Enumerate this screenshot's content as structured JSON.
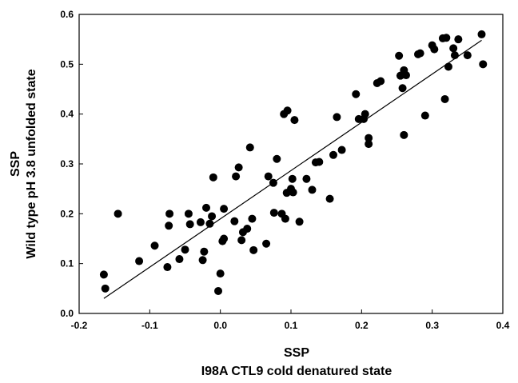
{
  "chart_data": {
    "type": "scatter",
    "xlabel": [
      "SSP",
      "I98A CTL9 cold denatured state"
    ],
    "ylabel": [
      "SSP",
      "Wild type pH 3.8 unfolded state"
    ],
    "xlim": [
      -0.2,
      0.4
    ],
    "ylim": [
      0.0,
      0.6
    ],
    "xticks": [
      "-0.2",
      "-0.1",
      "0.0",
      "0.1",
      "0.2",
      "0.3",
      "0.4"
    ],
    "yticks": [
      "0.0",
      "0.1",
      "0.2",
      "0.3",
      "0.4",
      "0.5",
      "0.6"
    ],
    "grid": false,
    "legend": "none",
    "colors": {
      "points": "#000000",
      "line": "#000000",
      "axes": "#000000"
    },
    "trendline": {
      "x": [
        -0.165,
        0.37
      ],
      "y": [
        0.03,
        0.548
      ]
    },
    "points": [
      {
        "x": -0.165,
        "y": 0.078
      },
      {
        "x": -0.163,
        "y": 0.05
      },
      {
        "x": -0.145,
        "y": 0.2
      },
      {
        "x": -0.115,
        "y": 0.105
      },
      {
        "x": -0.093,
        "y": 0.136
      },
      {
        "x": -0.075,
        "y": 0.093
      },
      {
        "x": -0.073,
        "y": 0.176
      },
      {
        "x": -0.072,
        "y": 0.2
      },
      {
        "x": -0.058,
        "y": 0.109
      },
      {
        "x": -0.05,
        "y": 0.128
      },
      {
        "x": -0.045,
        "y": 0.2
      },
      {
        "x": -0.043,
        "y": 0.179
      },
      {
        "x": -0.028,
        "y": 0.183
      },
      {
        "x": -0.025,
        "y": 0.107
      },
      {
        "x": -0.023,
        "y": 0.124
      },
      {
        "x": -0.02,
        "y": 0.212
      },
      {
        "x": -0.015,
        "y": 0.18
      },
      {
        "x": -0.012,
        "y": 0.195
      },
      {
        "x": -0.01,
        "y": 0.273
      },
      {
        "x": -0.003,
        "y": 0.045
      },
      {
        "x": 0.0,
        "y": 0.08
      },
      {
        "x": 0.003,
        "y": 0.145
      },
      {
        "x": 0.005,
        "y": 0.15
      },
      {
        "x": 0.005,
        "y": 0.21
      },
      {
        "x": 0.02,
        "y": 0.185
      },
      {
        "x": 0.022,
        "y": 0.275
      },
      {
        "x": 0.026,
        "y": 0.293
      },
      {
        "x": 0.03,
        "y": 0.147
      },
      {
        "x": 0.032,
        "y": 0.163
      },
      {
        "x": 0.038,
        "y": 0.17
      },
      {
        "x": 0.042,
        "y": 0.333
      },
      {
        "x": 0.045,
        "y": 0.19
      },
      {
        "x": 0.047,
        "y": 0.127
      },
      {
        "x": 0.065,
        "y": 0.14
      },
      {
        "x": 0.068,
        "y": 0.275
      },
      {
        "x": 0.075,
        "y": 0.262
      },
      {
        "x": 0.076,
        "y": 0.202
      },
      {
        "x": 0.08,
        "y": 0.31
      },
      {
        "x": 0.087,
        "y": 0.2
      },
      {
        "x": 0.09,
        "y": 0.4
      },
      {
        "x": 0.092,
        "y": 0.19
      },
      {
        "x": 0.094,
        "y": 0.242
      },
      {
        "x": 0.095,
        "y": 0.407
      },
      {
        "x": 0.1,
        "y": 0.25
      },
      {
        "x": 0.102,
        "y": 0.27
      },
      {
        "x": 0.103,
        "y": 0.243
      },
      {
        "x": 0.105,
        "y": 0.388
      },
      {
        "x": 0.112,
        "y": 0.184
      },
      {
        "x": 0.122,
        "y": 0.27
      },
      {
        "x": 0.13,
        "y": 0.248
      },
      {
        "x": 0.135,
        "y": 0.303
      },
      {
        "x": 0.14,
        "y": 0.304
      },
      {
        "x": 0.155,
        "y": 0.23
      },
      {
        "x": 0.16,
        "y": 0.318
      },
      {
        "x": 0.165,
        "y": 0.394
      },
      {
        "x": 0.172,
        "y": 0.328
      },
      {
        "x": 0.192,
        "y": 0.44
      },
      {
        "x": 0.196,
        "y": 0.39
      },
      {
        "x": 0.203,
        "y": 0.39
      },
      {
        "x": 0.205,
        "y": 0.4
      },
      {
        "x": 0.21,
        "y": 0.352
      },
      {
        "x": 0.21,
        "y": 0.34
      },
      {
        "x": 0.222,
        "y": 0.462
      },
      {
        "x": 0.227,
        "y": 0.466
      },
      {
        "x": 0.253,
        "y": 0.517
      },
      {
        "x": 0.255,
        "y": 0.477
      },
      {
        "x": 0.258,
        "y": 0.452
      },
      {
        "x": 0.26,
        "y": 0.358
      },
      {
        "x": 0.26,
        "y": 0.488
      },
      {
        "x": 0.263,
        "y": 0.478
      },
      {
        "x": 0.28,
        "y": 0.52
      },
      {
        "x": 0.283,
        "y": 0.522
      },
      {
        "x": 0.29,
        "y": 0.397
      },
      {
        "x": 0.3,
        "y": 0.538
      },
      {
        "x": 0.303,
        "y": 0.53
      },
      {
        "x": 0.315,
        "y": 0.552
      },
      {
        "x": 0.318,
        "y": 0.43
      },
      {
        "x": 0.32,
        "y": 0.553
      },
      {
        "x": 0.323,
        "y": 0.495
      },
      {
        "x": 0.33,
        "y": 0.532
      },
      {
        "x": 0.332,
        "y": 0.518
      },
      {
        "x": 0.337,
        "y": 0.55
      },
      {
        "x": 0.35,
        "y": 0.518
      },
      {
        "x": 0.37,
        "y": 0.56
      },
      {
        "x": 0.372,
        "y": 0.5
      }
    ]
  }
}
